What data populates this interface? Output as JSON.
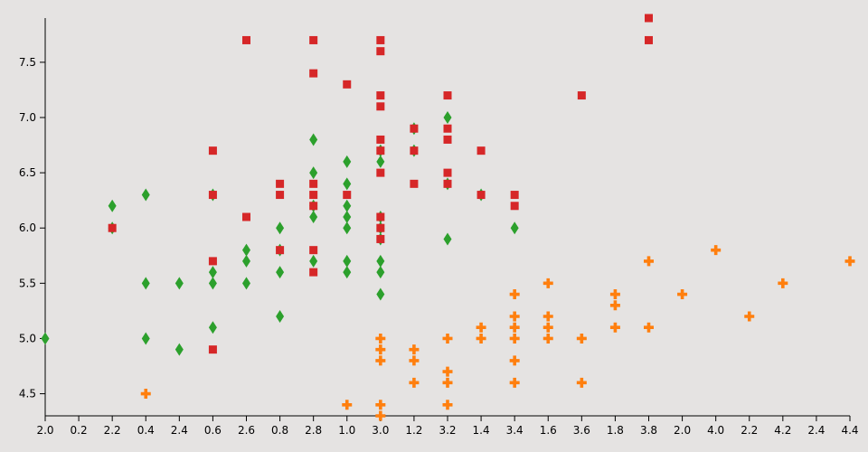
{
  "chart_data": {
    "type": "scatter",
    "title": "",
    "xlabel": "",
    "ylabel": "",
    "grid": false,
    "legend": "none",
    "x_tick_labels": [
      "2.0",
      "0.2",
      "2.2",
      "0.4",
      "2.4",
      "0.6",
      "2.6",
      "0.8",
      "2.8",
      "1.0",
      "3.0",
      "1.2",
      "3.2",
      "1.4",
      "3.4",
      "1.6",
      "3.6",
      "1.8",
      "3.8",
      "2.0",
      "4.0",
      "2.2",
      "4.2",
      "2.4",
      "4.4"
    ],
    "x_tick_index_range": [
      0,
      24
    ],
    "y_ticks": [
      "4.5",
      "5.0",
      "5.5",
      "6.0",
      "6.5",
      "7.0",
      "7.5"
    ],
    "ylim": [
      4.3,
      7.9
    ],
    "series": [
      {
        "marker": "cross",
        "color": "#ff7f0e",
        "points": [
          [
            3,
            4.5
          ],
          [
            9,
            4.4
          ],
          [
            10,
            4.3
          ],
          [
            10,
            4.4
          ],
          [
            10,
            4.8
          ],
          [
            10,
            4.9
          ],
          [
            10,
            5.0
          ],
          [
            11,
            4.6
          ],
          [
            11,
            4.8
          ],
          [
            11,
            4.9
          ],
          [
            12,
            4.4
          ],
          [
            12,
            4.6
          ],
          [
            12,
            4.7
          ],
          [
            12,
            5.0
          ],
          [
            13,
            5.0
          ],
          [
            13,
            5.1
          ],
          [
            14,
            4.6
          ],
          [
            14,
            4.8
          ],
          [
            14,
            5.0
          ],
          [
            14,
            5.1
          ],
          [
            14,
            5.2
          ],
          [
            14,
            5.4
          ],
          [
            15,
            5.0
          ],
          [
            15,
            5.1
          ],
          [
            15,
            5.2
          ],
          [
            15,
            5.5
          ],
          [
            16,
            4.6
          ],
          [
            16,
            5.0
          ],
          [
            17,
            5.1
          ],
          [
            17,
            5.3
          ],
          [
            17,
            5.4
          ],
          [
            18,
            5.1
          ],
          [
            18,
            5.7
          ],
          [
            19,
            5.4
          ],
          [
            20,
            5.8
          ],
          [
            21,
            5.2
          ],
          [
            22,
            5.5
          ],
          [
            24,
            5.7
          ]
        ]
      },
      {
        "marker": "diamond",
        "color": "#2ca02c",
        "points": [
          [
            0,
            5.0
          ],
          [
            2,
            6.0
          ],
          [
            2,
            6.2
          ],
          [
            3,
            5.0
          ],
          [
            3,
            5.5
          ],
          [
            3,
            6.3
          ],
          [
            4,
            4.9
          ],
          [
            4,
            5.5
          ],
          [
            5,
            5.1
          ],
          [
            5,
            5.5
          ],
          [
            5,
            5.6
          ],
          [
            5,
            6.3
          ],
          [
            6,
            5.5
          ],
          [
            6,
            5.7
          ],
          [
            6,
            5.8
          ],
          [
            7,
            5.2
          ],
          [
            7,
            5.6
          ],
          [
            7,
            5.8
          ],
          [
            7,
            6.0
          ],
          [
            8,
            5.7
          ],
          [
            8,
            6.1
          ],
          [
            8,
            6.2
          ],
          [
            8,
            6.5
          ],
          [
            8,
            6.8
          ],
          [
            9,
            5.6
          ],
          [
            9,
            5.7
          ],
          [
            9,
            6.0
          ],
          [
            9,
            6.1
          ],
          [
            9,
            6.2
          ],
          [
            9,
            6.4
          ],
          [
            9,
            6.6
          ],
          [
            10,
            5.4
          ],
          [
            10,
            5.6
          ],
          [
            10,
            5.7
          ],
          [
            10,
            5.9
          ],
          [
            10,
            6.0
          ],
          [
            10,
            6.1
          ],
          [
            10,
            6.6
          ],
          [
            10,
            6.7
          ],
          [
            11,
            6.7
          ],
          [
            11,
            6.9
          ],
          [
            12,
            5.9
          ],
          [
            12,
            6.4
          ],
          [
            12,
            7.0
          ],
          [
            13,
            6.3
          ],
          [
            14,
            6.0
          ]
        ]
      },
      {
        "marker": "square",
        "color": "#d62728",
        "points": [
          [
            2,
            6.0
          ],
          [
            5,
            4.9
          ],
          [
            5,
            5.7
          ],
          [
            5,
            6.3
          ],
          [
            5,
            6.7
          ],
          [
            6,
            6.1
          ],
          [
            6,
            7.7
          ],
          [
            7,
            5.8
          ],
          [
            7,
            6.3
          ],
          [
            7,
            6.4
          ],
          [
            8,
            5.6
          ],
          [
            8,
            5.8
          ],
          [
            8,
            6.2
          ],
          [
            8,
            6.3
          ],
          [
            8,
            6.4
          ],
          [
            8,
            7.4
          ],
          [
            8,
            7.7
          ],
          [
            9,
            6.3
          ],
          [
            9,
            7.3
          ],
          [
            10,
            5.9
          ],
          [
            10,
            6.0
          ],
          [
            10,
            6.1
          ],
          [
            10,
            6.5
          ],
          [
            10,
            6.7
          ],
          [
            10,
            6.8
          ],
          [
            10,
            7.1
          ],
          [
            10,
            7.2
          ],
          [
            10,
            7.6
          ],
          [
            10,
            7.7
          ],
          [
            11,
            6.4
          ],
          [
            11,
            6.7
          ],
          [
            11,
            6.9
          ],
          [
            12,
            6.4
          ],
          [
            12,
            6.5
          ],
          [
            12,
            6.8
          ],
          [
            12,
            6.9
          ],
          [
            12,
            7.2
          ],
          [
            13,
            6.3
          ],
          [
            13,
            6.7
          ],
          [
            14,
            6.2
          ],
          [
            14,
            6.3
          ],
          [
            16,
            7.2
          ],
          [
            18,
            7.7
          ],
          [
            18,
            7.9
          ]
        ]
      }
    ]
  }
}
